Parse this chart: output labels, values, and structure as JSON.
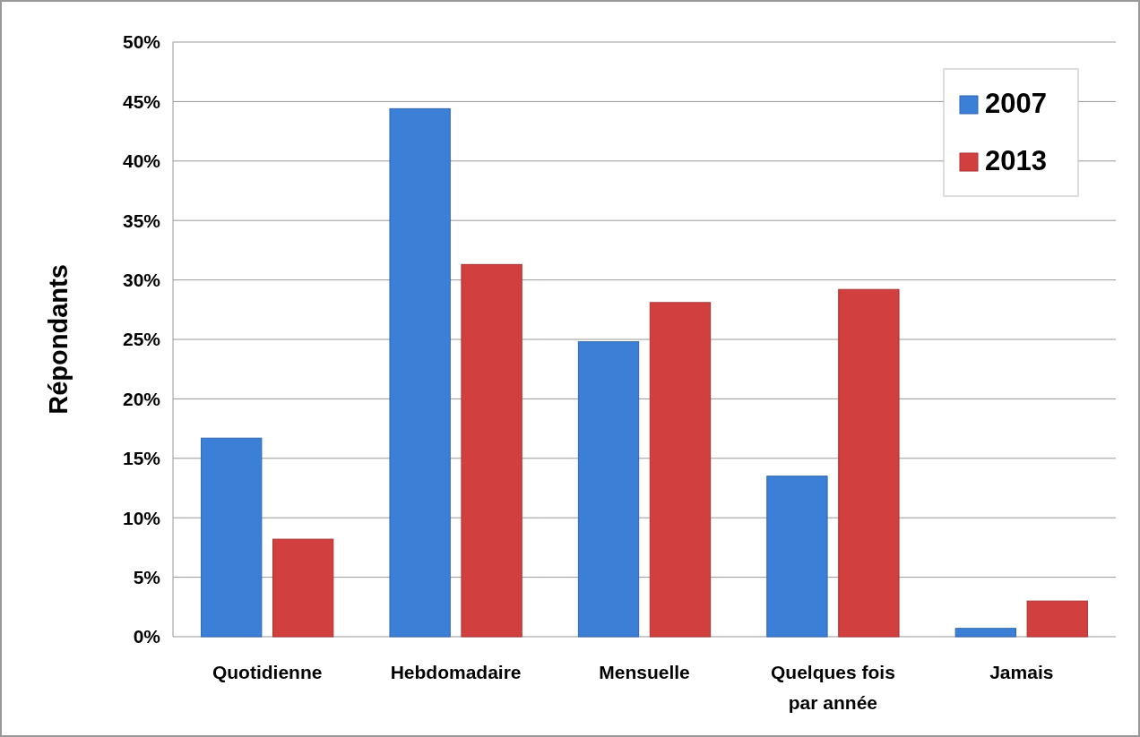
{
  "chart_data": {
    "type": "bar",
    "ylabel": "Répondants",
    "categories": [
      "Quotidienne",
      "Hebdomadaire",
      "Mensuelle",
      "Quelques fois par année",
      "Jamais"
    ],
    "series": [
      {
        "name": "2007",
        "color": "#3c7fd6",
        "values": [
          16.7,
          44.4,
          24.8,
          13.5,
          0.7
        ]
      },
      {
        "name": "2013",
        "color": "#d23f3f",
        "values": [
          8.2,
          31.3,
          28.1,
          29.2,
          3.0
        ]
      }
    ],
    "ylim": [
      0,
      50
    ],
    "yticks": [
      {
        "value": 0,
        "label": "0%"
      },
      {
        "value": 5,
        "label": "5%"
      },
      {
        "value": 10,
        "label": "10%"
      },
      {
        "value": 15,
        "label": "15%"
      },
      {
        "value": 20,
        "label": "20%"
      },
      {
        "value": 25,
        "label": "25%"
      },
      {
        "value": 30,
        "label": "30%"
      },
      {
        "value": 35,
        "label": "35%"
      },
      {
        "value": 40,
        "label": "40%"
      },
      {
        "value": 45,
        "label": "45%"
      },
      {
        "value": 50,
        "label": "50%"
      }
    ],
    "grid": "y",
    "legend": "top right"
  }
}
